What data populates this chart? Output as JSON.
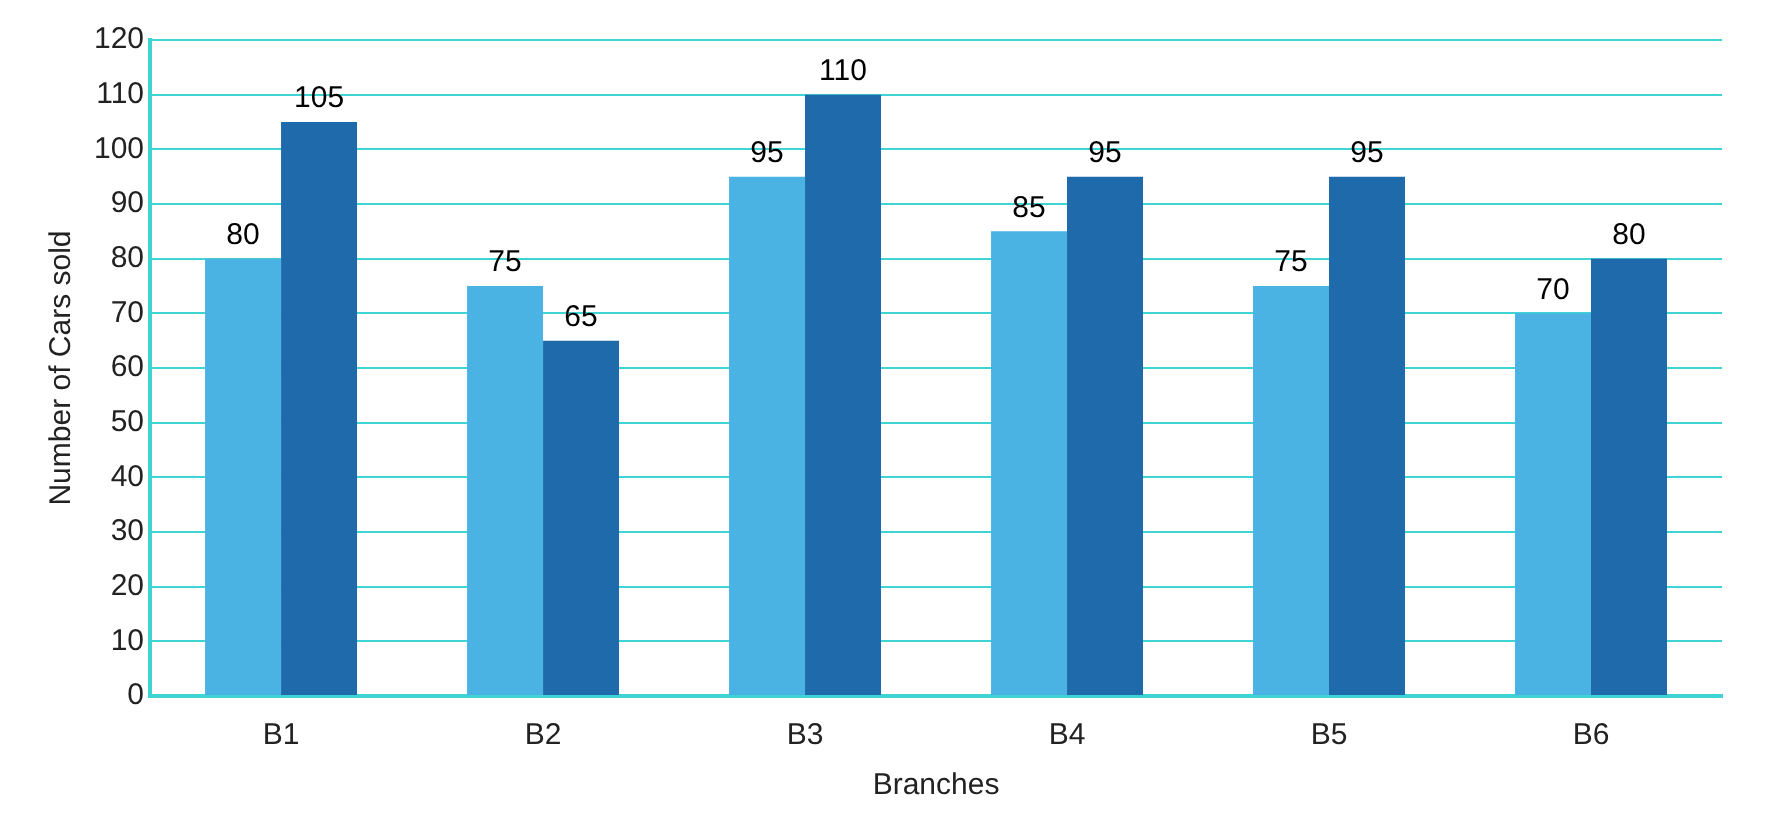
{
  "chart_data": {
    "type": "bar",
    "xlabel": "Branches",
    "ylabel": "Number of Cars sold",
    "categories": [
      "B1",
      "B2",
      "B3",
      "B4",
      "B5",
      "B6"
    ],
    "series": [
      {
        "color": "#4ab3e3",
        "values": [
          80,
          75,
          95,
          85,
          75,
          70
        ]
      },
      {
        "color": "#1f6aab",
        "values": [
          105,
          65,
          110,
          95,
          95,
          80
        ]
      }
    ],
    "ylim": [
      0,
      120
    ],
    "yticks": [
      0,
      10,
      20,
      30,
      40,
      50,
      60,
      70,
      80,
      90,
      100,
      110,
      120
    ],
    "grid": "y",
    "data_labels": true,
    "legend": false
  }
}
